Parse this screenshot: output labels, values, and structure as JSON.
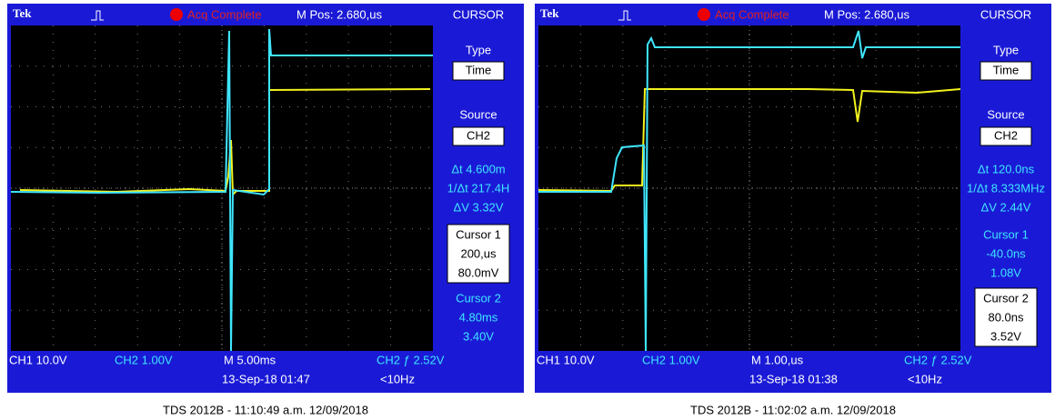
{
  "panels": [
    {
      "header": {
        "brand": "Tek",
        "status": "Acq Complete",
        "position": "M Pos: 2.680,us",
        "menu_title": "CURSOR"
      },
      "menu": {
        "type_label": "Type",
        "type_value": "Time",
        "source_label": "Source",
        "source_value": "CH2",
        "readouts": [
          "Δt 4.600m",
          "1/Δt 217.4H",
          "ΔV 3.32V"
        ],
        "cursor1": [
          "Cursor 1",
          "200,us",
          "80.0mV"
        ],
        "cursor2": [
          "Cursor 2",
          "4.80ms",
          "3.40V"
        ]
      },
      "footer": {
        "ch1": "CH1  10.0V",
        "ch2": "CH2  1.00V",
        "timebase": "M 5.00ms",
        "trigger": "CH2 ƒ 2.52V",
        "date": "13-Sep-18 01:47",
        "frequency": "<10Hz"
      },
      "caption": "TDS 2012B - 11:10:49 a.m.   12/09/2018"
    },
    {
      "header": {
        "brand": "Tek",
        "status": "Acq Complete",
        "position": "M Pos: 2.680,us",
        "menu_title": "CURSOR"
      },
      "menu": {
        "type_label": "Type",
        "type_value": "Time",
        "source_label": "Source",
        "source_value": "CH2",
        "readouts": [
          "Δt 120.0ns",
          "1/Δt 8.333MHz",
          "ΔV 2.44V"
        ],
        "cursor1": [
          "Cursor 1",
          "-40.0ns",
          "1.08V"
        ],
        "cursor2": [
          "Cursor 2",
          "80.0ns",
          "3.52V"
        ]
      },
      "footer": {
        "ch1": "CH1  10.0V",
        "ch2": "CH2  1.00V",
        "timebase": "M 1.00,us",
        "trigger": "CH2 ƒ 2.52V",
        "date": "13-Sep-18 01:38",
        "frequency": "<10Hz"
      },
      "caption": "TDS 2012B - 11:02:02 a.m.   12/09/2018"
    }
  ]
}
